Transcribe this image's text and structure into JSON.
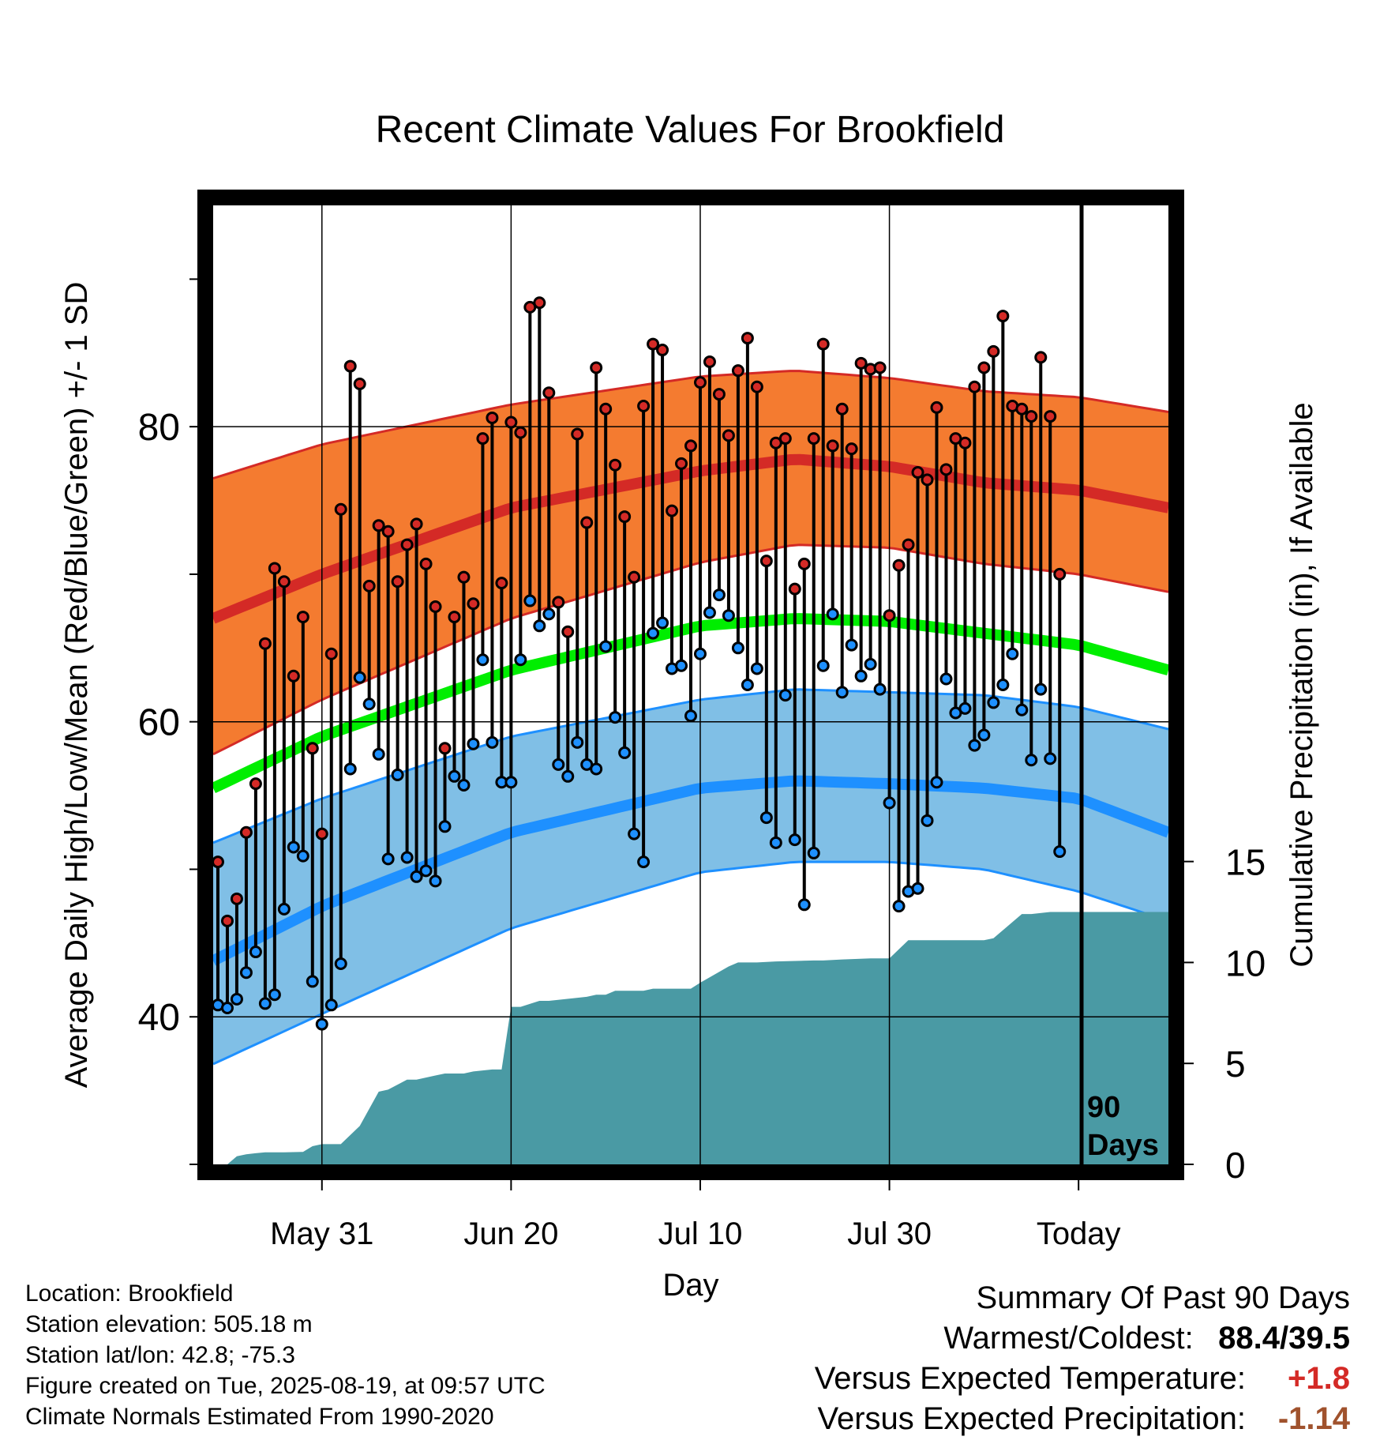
{
  "title": "Recent Climate Values For Brookfield",
  "ylabel": "Average Daily High/Low/Mean (Red/Blue/Green) +/- 1 SD",
  "y2label": "Cumulative Precipitation (in), If Available",
  "xlabel": "Day",
  "x_ticks": [
    "May 31",
    "Jun 20",
    "Jul 10",
    "Jul 30",
    "Today"
  ],
  "y_ticks": [
    "40",
    "60",
    "80"
  ],
  "y2_ticks": [
    "0",
    "5",
    "10",
    "15"
  ],
  "period_label_line1": "90",
  "period_label_line2": "Days",
  "info": {
    "location": "Location: Brookfield",
    "elevation": "Station elevation: 505.18 m",
    "latlon": "Station lat/lon: 42.8; -75.3",
    "created": "Figure created on Tue, 2025-08-19, at 09:57 UTC",
    "normals": "Climate Normals Estimated From 1990-2020"
  },
  "summary": {
    "heading": "Summary Of Past 90 Days",
    "warm_cold_label": "Warmest/Coldest:",
    "warm_cold_value": "88.4/39.5",
    "temp_label": "Versus Expected Temperature:",
    "temp_value": "+1.8",
    "precip_label": "Versus Expected Precipitation:",
    "precip_value": "-1.14"
  },
  "colors": {
    "high_band": "#f47b30",
    "high_line": "#d42a26",
    "low_band": "#80bfe6",
    "low_line": "#1e90ff",
    "mean_line": "#00ee00",
    "precip_fill": "#4a9aa4",
    "high_point": "#d42a26",
    "low_point": "#1e90ff",
    "temp_positive": "#d42a26",
    "precip_negative": "#a0522d"
  },
  "chart_data": {
    "type": "line",
    "x_unit": "days relative to today (2025-08-19)",
    "x_range": [
      -91.5,
      9.5
    ],
    "temp_range": [
      30,
      95
    ],
    "precip_range": [
      0,
      47.5
    ],
    "grid": true,
    "normals": {
      "day": [
        -91.5,
        -80,
        -60,
        -40,
        -30,
        -20,
        -10,
        0,
        9.5
      ],
      "high_mean": [
        67.0,
        70.0,
        74.5,
        77.0,
        77.8,
        77.3,
        76.2,
        75.7,
        74.5
      ],
      "high_upper": [
        76.5,
        78.8,
        81.5,
        83.4,
        83.8,
        83.3,
        82.4,
        82.0,
        81.0
      ],
      "high_lower": [
        57.8,
        61.5,
        67.0,
        70.8,
        72.0,
        71.8,
        70.7,
        70.0,
        68.8
      ],
      "low_mean": [
        43.8,
        47.5,
        52.5,
        55.5,
        56.0,
        55.8,
        55.5,
        54.8,
        52.5
      ],
      "low_upper": [
        51.8,
        54.8,
        59.0,
        61.5,
        62.2,
        62.0,
        61.8,
        61.0,
        59.5
      ],
      "low_lower": [
        36.8,
        40.2,
        46.0,
        49.8,
        50.5,
        50.5,
        50.0,
        48.5,
        46.5
      ],
      "avg_mean": [
        55.5,
        59.0,
        63.5,
        66.5,
        67.0,
        66.8,
        66.0,
        65.2,
        63.5
      ]
    },
    "series": [
      {
        "name": "High",
        "start_day": -91,
        "values": [
          50.5,
          46.5,
          48,
          52.5,
          55.8,
          65.3,
          70.4,
          69.5,
          63.1,
          67.1,
          58.2,
          52.4,
          64.6,
          74.4,
          84.1,
          82.9,
          69.2,
          73.3,
          72.9,
          69.5,
          72.0,
          73.4,
          70.7,
          67.8,
          58.2,
          67.1,
          69.8,
          68.0,
          79.2,
          80.6,
          69.4,
          80.3,
          79.6,
          88.1,
          88.4,
          82.3,
          68.1,
          66.1,
          79.5,
          73.5,
          84.0,
          81.2,
          77.4,
          73.9,
          69.8,
          81.4,
          85.6,
          85.2,
          74.3,
          77.5,
          78.7,
          83.0,
          84.4,
          82.2,
          79.4,
          83.8,
          86.0,
          82.7,
          70.9,
          78.9,
          79.2,
          69.0,
          70.7,
          79.2,
          85.6,
          78.7,
          81.2,
          78.5,
          84.3,
          83.9,
          84.0,
          67.2,
          70.6,
          72.0,
          76.9,
          76.4,
          81.3,
          77.1,
          79.2,
          78.9,
          82.7,
          84.0,
          85.1,
          87.5,
          81.4,
          81.2,
          80.7,
          84.7,
          80.7,
          70.0
        ]
      },
      {
        "name": "Low",
        "start_day": -91,
        "values": [
          40.8,
          40.6,
          41.2,
          43,
          44.4,
          40.9,
          41.5,
          47.3,
          51.5,
          50.9,
          42.4,
          39.5,
          40.8,
          43.6,
          56.8,
          63.0,
          61.2,
          57.8,
          50.7,
          56.4,
          50.8,
          49.5,
          49.9,
          49.2,
          52.9,
          56.3,
          55.7,
          58.5,
          64.2,
          58.6,
          55.9,
          55.9,
          64.2,
          68.2,
          66.5,
          67.3,
          57.1,
          56.3,
          58.6,
          57.1,
          56.8,
          65.1,
          60.3,
          57.9,
          52.4,
          50.5,
          66.0,
          66.7,
          63.6,
          63.8,
          60.4,
          64.6,
          67.4,
          68.6,
          67.2,
          65.0,
          62.5,
          63.6,
          53.5,
          51.8,
          61.8,
          52.0,
          47.6,
          51.1,
          63.8,
          67.3,
          62.0,
          65.2,
          63.1,
          63.9,
          62.2,
          54.5,
          47.5,
          48.5,
          48.7,
          53.3,
          55.9,
          62.9,
          60.6,
          60.9,
          58.4,
          59.1,
          61.3,
          62.5,
          64.6,
          60.8,
          57.4,
          62.2,
          57.5,
          51.2
        ]
      }
    ],
    "precipitation": {
      "day": [
        -91.5,
        -90,
        -89,
        -88,
        -87,
        -86,
        -84,
        -82,
        -81,
        -80,
        -79,
        -78,
        -76,
        -74,
        -73,
        -71,
        -70,
        -68,
        -67,
        -65,
        -64,
        -62,
        -61,
        -60,
        -59,
        -57,
        -56,
        -52,
        -51,
        -50,
        -49,
        -46,
        -45,
        -41,
        -40,
        -37,
        -36,
        -35,
        -34,
        -32,
        -28,
        -27,
        -25,
        -22,
        -20,
        -18,
        -17,
        -15,
        -10,
        -9,
        -6,
        -5,
        -3,
        0,
        9.5
      ],
      "total": [
        0,
        0,
        0.4,
        0.5,
        0.55,
        0.6,
        0.6,
        0.62,
        0.9,
        1.0,
        1.0,
        1.0,
        1.9,
        3.6,
        3.7,
        4.2,
        4.2,
        4.4,
        4.5,
        4.5,
        4.6,
        4.7,
        4.7,
        7.8,
        7.8,
        8.1,
        8.1,
        8.3,
        8.4,
        8.4,
        8.6,
        8.6,
        8.7,
        8.7,
        9.0,
        9.8,
        10.0,
        10.0,
        10.0,
        10.05,
        10.1,
        10.1,
        10.15,
        10.2,
        10.2,
        11.1,
        11.1,
        11.1,
        11.1,
        11.2,
        12.4,
        12.4,
        12.5,
        12.5,
        12.5
      ]
    }
  }
}
